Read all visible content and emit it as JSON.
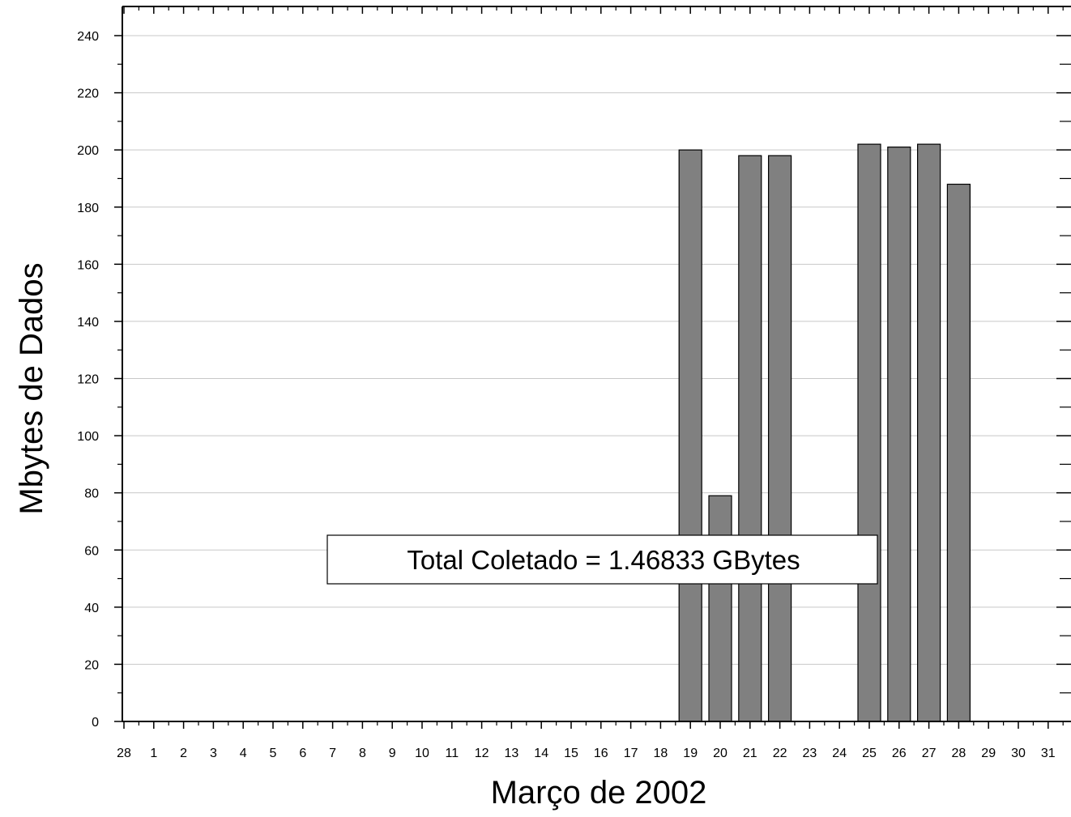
{
  "chart_data": {
    "type": "bar",
    "xlabel": "Março de 2002",
    "ylabel": "Mbytes de Dados",
    "xlim": [
      27.5,
      31.85
    ],
    "ylim": [
      0,
      240
    ],
    "x_tick_labels": [
      "28",
      "1",
      "2",
      "3",
      "4",
      "5",
      "6",
      "7",
      "8",
      "9",
      "10",
      "11",
      "12",
      "13",
      "14",
      "15",
      "16",
      "17",
      "18",
      "19",
      "20",
      "21",
      "22",
      "23",
      "24",
      "25",
      "26",
      "27",
      "28",
      "29",
      "30",
      "31"
    ],
    "y_ticks": [
      0,
      20,
      40,
      60,
      80,
      100,
      120,
      140,
      160,
      180,
      200,
      220,
      240
    ],
    "categories": [
      "19",
      "20",
      "21",
      "22",
      "25",
      "26",
      "27",
      "28"
    ],
    "x_positions": [
      19,
      20,
      21,
      22,
      25,
      26,
      27,
      28
    ],
    "values": [
      200,
      79,
      198,
      198,
      202,
      201,
      202,
      188
    ],
    "bar_color": "#808080",
    "grid": "horizontal",
    "annotation": "Total Coletado = 1.46833 GBytes"
  }
}
